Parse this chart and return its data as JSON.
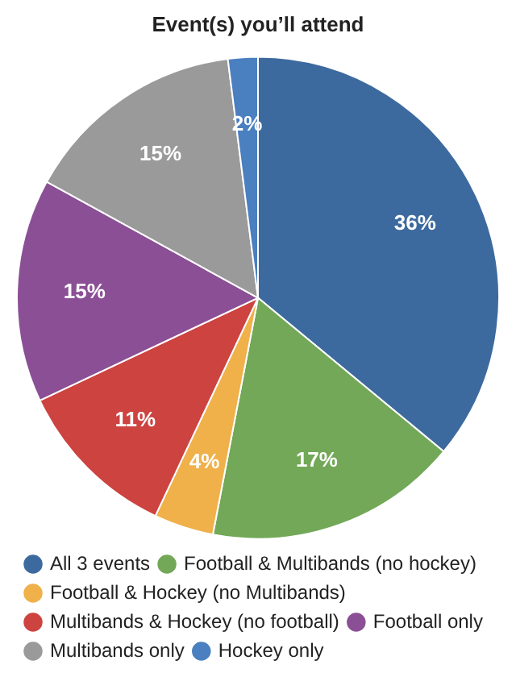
{
  "chart_data": {
    "type": "pie",
    "title": "Event(s) you’ll attend",
    "categories": [
      "All 3 events",
      "Football & Multibands (no hockey)",
      "Football & Hockey (no Multibands)",
      "Multibands & Hockey (no football)",
      "Football only",
      "Multibands only",
      "Hockey only"
    ],
    "values": [
      36,
      17,
      4,
      11,
      15,
      15,
      2
    ],
    "colors": [
      "#3d6a9e",
      "#72a857",
      "#f0b04a",
      "#cc4340",
      "#8b4f96",
      "#9a9a9a",
      "#4a7fc0"
    ],
    "value_labels": [
      "36%",
      "17%",
      "4%",
      "11%",
      "15%",
      "15%",
      "2%"
    ],
    "legend": "bottom"
  }
}
